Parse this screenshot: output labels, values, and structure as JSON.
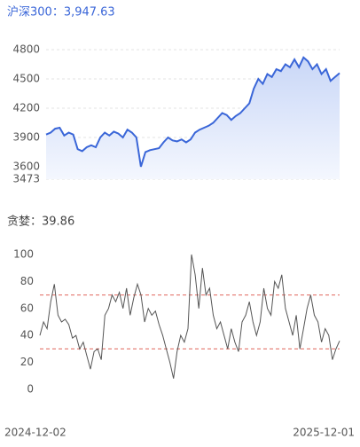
{
  "chart_data": [
    {
      "type": "area",
      "title": "沪深300：3,947.63",
      "color": "#3a66d8",
      "fill": "#dfe7fb",
      "values": [
        3930,
        3950,
        3990,
        4000,
        3920,
        3950,
        3930,
        3780,
        3760,
        3800,
        3820,
        3800,
        3900,
        3950,
        3920,
        3960,
        3940,
        3900,
        3980,
        3950,
        3900,
        3600,
        3750,
        3770,
        3780,
        3790,
        3850,
        3900,
        3870,
        3860,
        3880,
        3850,
        3880,
        3950,
        3980,
        4000,
        4020,
        4050,
        4100,
        4150,
        4130,
        4080,
        4120,
        4150,
        4200,
        4250,
        4400,
        4500,
        4450,
        4550,
        4520,
        4600,
        4580,
        4650,
        4620,
        4700,
        4620,
        4720,
        4680,
        4600,
        4650,
        4550,
        4600,
        4480,
        4520,
        4560
      ],
      "ylim": [
        3473,
        4900
      ],
      "yticks": [
        3473,
        3600,
        3900,
        4200,
        4500,
        4800
      ],
      "grid": true
    },
    {
      "type": "line",
      "title": "贪婪：39.86",
      "color": "#555555",
      "categories": [
        "2024-12-02",
        null,
        null,
        null,
        null,
        null,
        null,
        null,
        null,
        null,
        null,
        null,
        null,
        null,
        null,
        null,
        null,
        null,
        null,
        null,
        null,
        null,
        null,
        null,
        null,
        null,
        null,
        null,
        null,
        null,
        null,
        null,
        null,
        null,
        null,
        null,
        null,
        null,
        null,
        null,
        null,
        null,
        null,
        null,
        null,
        null,
        null,
        null,
        null,
        null,
        null,
        null,
        null,
        null,
        null,
        null,
        null,
        null,
        null,
        null,
        null,
        null,
        null,
        null,
        null,
        null,
        null,
        null,
        null,
        null,
        null,
        null,
        null,
        null,
        null,
        null,
        null,
        null,
        null,
        null,
        null,
        null,
        null,
        "2025-12-01"
      ],
      "values": [
        40,
        50,
        45,
        65,
        78,
        55,
        50,
        52,
        48,
        38,
        40,
        30,
        35,
        25,
        15,
        28,
        30,
        22,
        55,
        60,
        70,
        65,
        72,
        60,
        75,
        55,
        68,
        78,
        70,
        50,
        60,
        55,
        58,
        48,
        40,
        30,
        20,
        8,
        28,
        40,
        35,
        45,
        100,
        85,
        60,
        90,
        70,
        75,
        55,
        45,
        50,
        40,
        30,
        45,
        35,
        28,
        50,
        55,
        65,
        50,
        40,
        50,
        75,
        60,
        55,
        80,
        75,
        85,
        60,
        50,
        40,
        55,
        30,
        45,
        60,
        70,
        55,
        50,
        35,
        45,
        40,
        22,
        30,
        36
      ],
      "ylim": [
        0,
        100
      ],
      "yticks": [
        0,
        20,
        40,
        60,
        80,
        100
      ],
      "grid": false,
      "reference_lines": [
        70,
        30
      ],
      "reference_color": "#e0665c"
    }
  ]
}
